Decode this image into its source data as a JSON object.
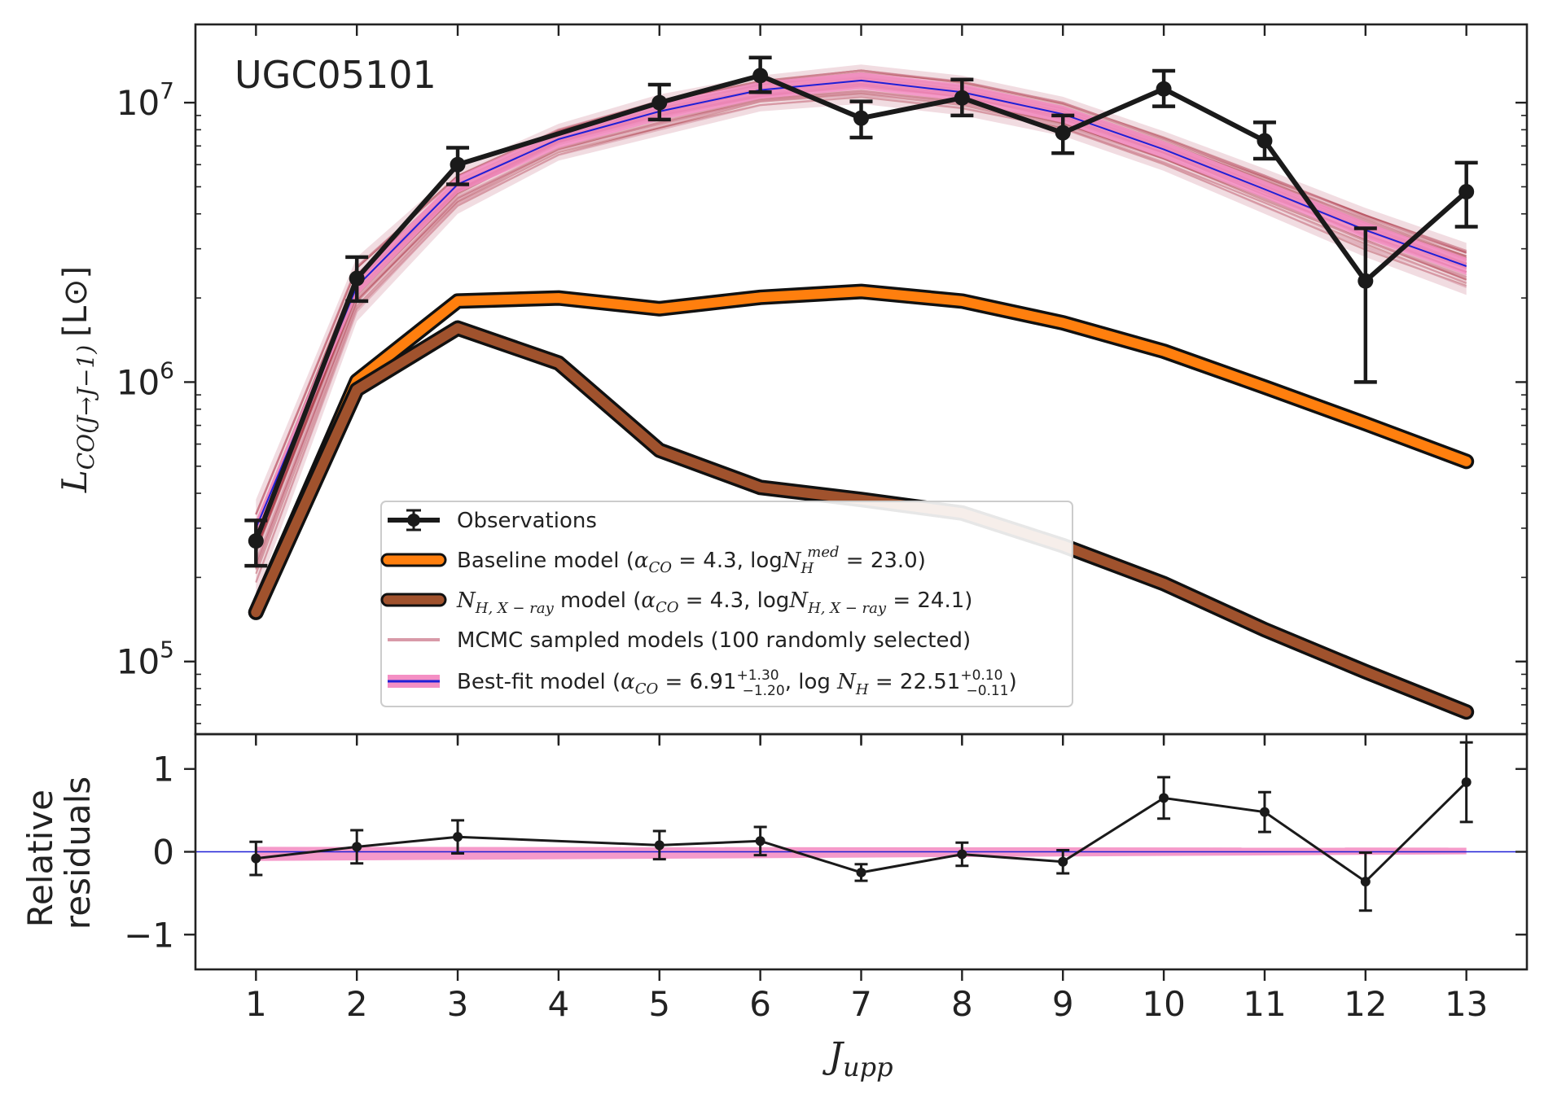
{
  "chart_data": [
    {
      "panel": "top",
      "type": "line",
      "yscale": "log",
      "title_annotation": "UGC05101",
      "ylabel": "L_{CO(J→J−1)} [L⊙]",
      "ylabel_parts": {
        "main": "L",
        "sub": "CO(J→J−1)",
        "unit": "[L⊙]"
      },
      "xlim": [
        0.4,
        13.6
      ],
      "ylim_log10": [
        4.74,
        7.28
      ],
      "ytick_labels": [
        {
          "log": 5,
          "base": "10",
          "exp": "5"
        },
        {
          "log": 6,
          "base": "10",
          "exp": "6"
        },
        {
          "log": 7,
          "base": "10",
          "exp": "7"
        }
      ],
      "x": [
        1,
        2,
        3,
        4,
        5,
        6,
        7,
        8,
        9,
        10,
        11,
        12,
        13
      ],
      "series": [
        {
          "name": "Observations",
          "color": "#1a1a1a",
          "values": [
            270000,
            2350000,
            6000000,
            null,
            10000000,
            12500000,
            8800000,
            10400000,
            7800000,
            11200000,
            7300000,
            2300000,
            4800000
          ],
          "err_low": [
            220000,
            1950000,
            5100000,
            null,
            8700000,
            10900000,
            7500000,
            9000000,
            6600000,
            9700000,
            6300000,
            1000000,
            3600000
          ],
          "err_high": [
            320000,
            2800000,
            6900000,
            null,
            11600000,
            14500000,
            10100000,
            12100000,
            9000000,
            13000000,
            8500000,
            3550000,
            6100000
          ]
        },
        {
          "name": "Baseline model",
          "color": "#ff7f0e",
          "values": [
            150000,
            1010000,
            1950000,
            2000000,
            1830000,
            2010000,
            2110000,
            1950000,
            1630000,
            1290000,
            960000,
            710000,
            520000
          ]
        },
        {
          "name": "N_H,X-ray model",
          "color": "#a0522d",
          "values": [
            150000,
            940000,
            1560000,
            1170000,
            570000,
            420000,
            380000,
            340000,
            260000,
            190000,
            130000,
            92000,
            66000
          ]
        },
        {
          "name": "Best-fit model",
          "color": "#1f1fd6",
          "band_color": "#f48fc4",
          "values": [
            300000,
            2200000,
            5100000,
            7400000,
            9300000,
            11100000,
            12000000,
            10900000,
            9100000,
            6800000,
            4900000,
            3500000,
            2600000
          ]
        }
      ],
      "mcmc_band": {
        "name": "MCMC sampled models",
        "color": "#a01c2c",
        "light_color": "#d89aa8",
        "n_samples": 100,
        "low": [
          170000,
          1650000,
          4000000,
          6200000,
          7600000,
          9300000,
          9900000,
          9000000,
          7600000,
          5700000,
          4000000,
          2800000,
          2050000
        ],
        "high": [
          380000,
          2800000,
          5800000,
          8400000,
          10700000,
          12500000,
          13700000,
          12500000,
          10500000,
          7900000,
          5800000,
          4200000,
          3150000
        ]
      },
      "legend": {
        "position": "lower-center",
        "entries": [
          {
            "key": "obs",
            "text": "Observations"
          },
          {
            "key": "baseline",
            "text": "Baseline model (",
            "alpha": "α",
            "alpha_sub": "CO",
            "mid": " = 4.3, log",
            "nh": "N",
            "nh_sub": "H",
            "nh_sup": "med",
            "tail": " = 23.0)"
          },
          {
            "key": "xray",
            "nh": "N",
            "nh_sub": "H, X − ray",
            "text": " model (",
            "alpha": "α",
            "alpha_sub": "CO",
            "mid": " = 4.3, log",
            "nh2": "N",
            "nh2_sub": "H, X − ray",
            "tail": " = 24.1)"
          },
          {
            "key": "mcmc",
            "text": "MCMC sampled models (100 randomly selected)"
          },
          {
            "key": "best",
            "text": "Best-fit model (",
            "alpha": "α",
            "alpha_sub": "CO",
            "val1": " = 6.91",
            "val1_sup": "+1.30",
            "val1_sub": "−1.20",
            "mid": ", log ",
            "nh": "N",
            "nh_sub": "H",
            "val2": " = 22.51",
            "val2_sup": "+0.10",
            "val2_sub": "−0.11",
            "tail": ")"
          }
        ]
      }
    },
    {
      "panel": "bottom",
      "type": "line",
      "ylabel": "Relative residuals",
      "ylabel_lines": [
        "Relative",
        "residuals"
      ],
      "ylim": [
        -1.42,
        1.42
      ],
      "yticks": [
        -1,
        0,
        1
      ],
      "ytick_labels": [
        "−1",
        "0",
        "1"
      ],
      "xlabel": "J_upp",
      "xlabel_parts": {
        "main": "J",
        "sub": "upp"
      },
      "xticks": [
        1,
        2,
        3,
        4,
        5,
        6,
        7,
        8,
        9,
        10,
        11,
        12,
        13
      ],
      "xtick_labels": [
        "1",
        "2",
        "3",
        "4",
        "5",
        "6",
        "7",
        "8",
        "9",
        "10",
        "11",
        "12",
        "13"
      ],
      "x_points": [
        1,
        2,
        3,
        5,
        6,
        7,
        8,
        9,
        10,
        11,
        12,
        13
      ],
      "values": [
        -0.08,
        0.06,
        0.18,
        0.08,
        0.13,
        -0.25,
        -0.03,
        -0.12,
        0.65,
        0.48,
        -0.36,
        0.84
      ],
      "err": [
        0.2,
        0.2,
        0.2,
        0.17,
        0.17,
        0.1,
        0.14,
        0.14,
        0.25,
        0.24,
        0.35,
        0.48
      ],
      "band_x": [
        1,
        13
      ],
      "band_low": [
        -0.11,
        -0.03
      ],
      "band_high": [
        0.06,
        0.05
      ],
      "line_color": "#1a1a1a",
      "zero_line_color": "#1f1fd6",
      "band_color": "#f48fc4"
    }
  ]
}
